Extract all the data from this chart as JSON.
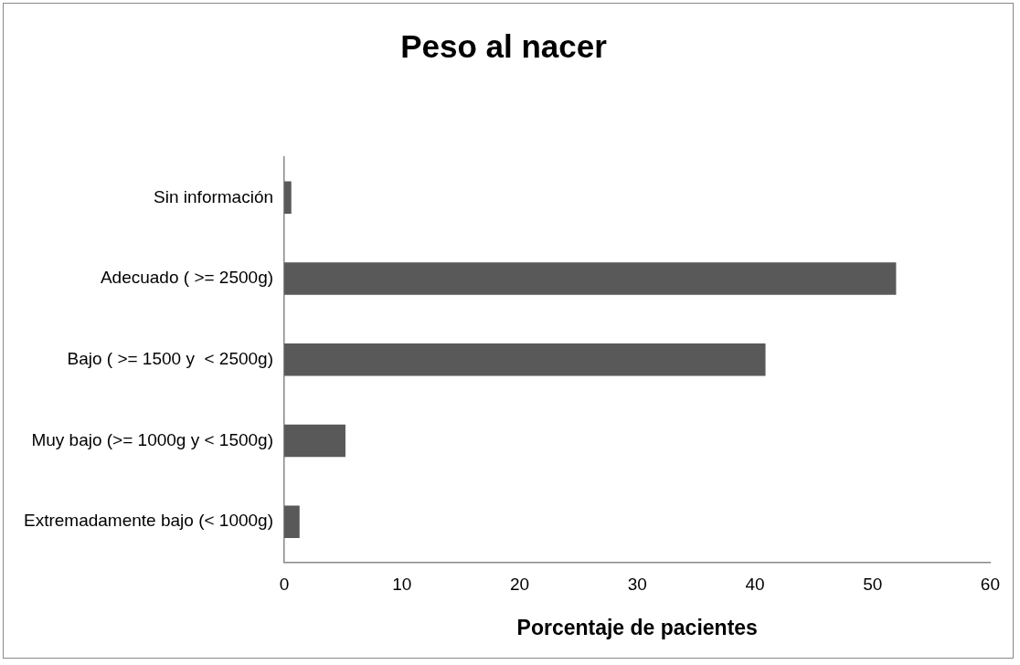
{
  "chart_data": {
    "type": "bar",
    "orientation": "horizontal",
    "title": "Peso al nacer",
    "xlabel": "Porcentaje de pacientes",
    "categories": [
      "Sin información",
      "Adecuado ( >= 2500g)",
      "Bajo ( >= 1500 y  < 2500g)",
      "Muy bajo (>= 1000g y < 1500g)",
      "Extremadamente bajo (< 1000g)"
    ],
    "values": [
      0.6,
      52.0,
      40.9,
      5.2,
      1.3
    ],
    "color": "#595959",
    "xlim": [
      0,
      60
    ],
    "xticks": [
      0,
      10,
      20,
      30,
      40,
      50,
      60
    ],
    "grid": false,
    "legend": false
  }
}
